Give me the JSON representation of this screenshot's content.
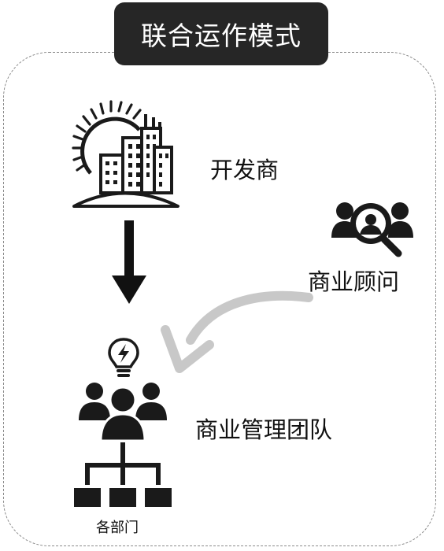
{
  "title": "联合运作模式",
  "nodes": {
    "developer": {
      "label": "开发商",
      "icon": "city-sun-icon"
    },
    "consultant": {
      "label": "商业顾问",
      "icon": "people-search-icon"
    },
    "team": {
      "label": "商业管理团队",
      "icon": "team-icon",
      "idea_icon": "lightbulb-icon"
    },
    "departments": {
      "label": "各部门",
      "icon": "org-chart-icon"
    }
  },
  "colors": {
    "badge_bg": "#262626",
    "badge_text": "#ffffff",
    "icon": "#1a1a1a",
    "curved_arrow": "#c8c8c8",
    "frame": "#8a8a8a"
  }
}
